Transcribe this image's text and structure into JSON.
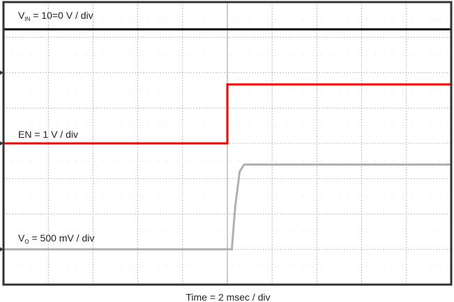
{
  "chart_data": {
    "type": "line",
    "title": "",
    "xlabel": "Time = 2 msec / div",
    "ylabel": "",
    "x_divisions": 10,
    "y_divisions": 8,
    "xlim": [
      0,
      20
    ],
    "x_unit": "ms",
    "grid": true,
    "series": [
      {
        "name": "VIN",
        "label_main": "V",
        "label_sub": "IN",
        "label_rest": " = 10=0 V / div",
        "color": "#000000",
        "x": [
          0,
          20
        ],
        "y": [
          7.23,
          7.23
        ],
        "marker_div": 6.0
      },
      {
        "name": "EN",
        "label_main": "EN = 1 V / div",
        "label_sub": "",
        "label_rest": "",
        "color": "#ff0000",
        "x": [
          0,
          10,
          10,
          20
        ],
        "y": [
          4.0,
          4.0,
          5.67,
          5.67
        ],
        "marker_div": 4.0
      },
      {
        "name": "VO",
        "label_main": "V",
        "label_sub": "O",
        "label_rest": " = 500 mV / div",
        "color": "#b0b0b0",
        "x": [
          0,
          10.2,
          10.35,
          10.55,
          10.75,
          20
        ],
        "y": [
          1.0,
          1.0,
          2.2,
          3.2,
          3.4,
          3.4
        ],
        "marker_div": 1.0
      }
    ]
  }
}
